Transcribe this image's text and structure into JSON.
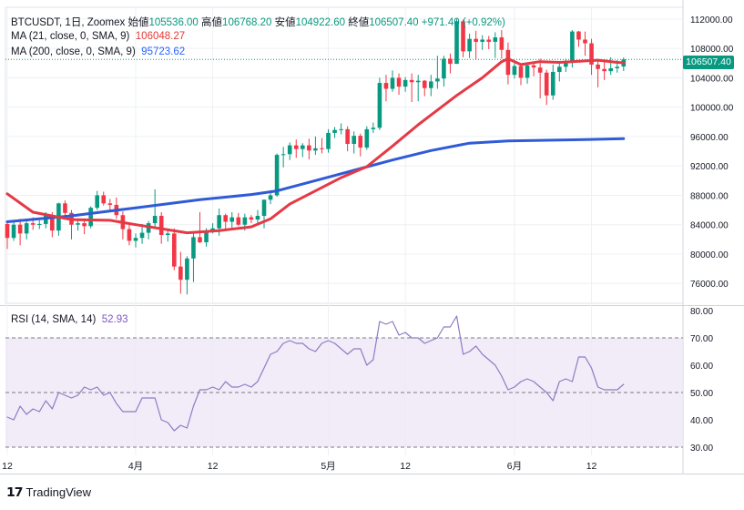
{
  "header": {
    "symbol": "BTCUSDT",
    "interval": "1日",
    "exchange": "Zoomex",
    "open_label": "始値",
    "open": "105536.00",
    "high_label": "高値",
    "high": "106768.20",
    "low_label": "安値",
    "low": "104922.60",
    "close_label": "終値",
    "close": "106507.40",
    "change": "+971.40 (+0.92%)"
  },
  "indicators": {
    "ma21_label": "MA (21, close, 0, SMA, 9)",
    "ma21_value": "106048.27",
    "ma21_color": "#e53945",
    "ma200_label": "MA (200, close, 0, SMA, 9)",
    "ma200_value": "95723.62",
    "ma200_color": "#2f5bd6",
    "rsi_label": "RSI (14, SMA, 14)",
    "rsi_value": "52.93",
    "rsi_color": "#8e7cc3"
  },
  "last_price_tag": "106507.40",
  "colors": {
    "up": "#089981",
    "down": "#f23645",
    "rsi_band": "#ede7f6"
  },
  "branding": "TradingView",
  "chart_data": {
    "type": "candlestick",
    "price_axis_ticks": [
      "112000.00",
      "108000.00",
      "104000.00",
      "100000.00",
      "96000.00",
      "92000.00",
      "88000.00",
      "84000.00",
      "80000.00",
      "76000.00"
    ],
    "price_range": [
      73300,
      113600
    ],
    "rsi_axis_ticks": [
      "80.00",
      "70.00",
      "60.00",
      "50.00",
      "40.00",
      "30.00"
    ],
    "rsi_range": [
      27,
      81
    ],
    "rsi_levels": [
      70,
      50,
      30
    ],
    "x_tick_labels": [
      "12",
      "4月",
      "12",
      "5月",
      "12",
      "6月",
      "12"
    ],
    "x_tick_index": [
      0,
      20,
      32,
      50,
      62,
      79,
      91
    ],
    "candles": [
      [
        84100,
        84500,
        80700,
        82200
      ],
      [
        82200,
        84500,
        81800,
        84000
      ],
      [
        84000,
        84800,
        81200,
        82800
      ],
      [
        82800,
        84800,
        82000,
        84200
      ],
      [
        84200,
        85000,
        83300,
        84000
      ],
      [
        84000,
        84600,
        83400,
        84100
      ],
      [
        84100,
        85700,
        83500,
        85300
      ],
      [
        85300,
        85700,
        82300,
        83200
      ],
      [
        83200,
        87000,
        82500,
        86900
      ],
      [
        86900,
        87300,
        85000,
        85600
      ],
      [
        85600,
        86000,
        82000,
        84000
      ],
      [
        84000,
        84600,
        83200,
        84200
      ],
      [
        84200,
        84600,
        82700,
        83800
      ],
      [
        83800,
        86500,
        83500,
        86300
      ],
      [
        86300,
        88600,
        86000,
        88000
      ],
      [
        88000,
        88500,
        86600,
        86900
      ],
      [
        86900,
        87500,
        85800,
        86700
      ],
      [
        86700,
        87700,
        84800,
        85300
      ],
      [
        85300,
        85800,
        82000,
        83400
      ],
      [
        83400,
        84000,
        81200,
        81800
      ],
      [
        81800,
        82800,
        80900,
        82200
      ],
      [
        82200,
        84100,
        81400,
        82900
      ],
      [
        82900,
        84500,
        82000,
        84200
      ],
      [
        84200,
        88800,
        83500,
        85200
      ],
      [
        85200,
        85700,
        81400,
        82600
      ],
      [
        82600,
        83200,
        81700,
        82800
      ],
      [
        82800,
        83500,
        77800,
        78300
      ],
      [
        78300,
        80300,
        74600,
        76500
      ],
      [
        76500,
        79700,
        74500,
        79400
      ],
      [
        79400,
        83000,
        76200,
        82300
      ],
      [
        82300,
        85700,
        81500,
        81600
      ],
      [
        81600,
        83500,
        81000,
        83200
      ],
      [
        83200,
        84200,
        82800,
        83500
      ],
      [
        83500,
        86200,
        82500,
        85300
      ],
      [
        85300,
        85500,
        83200,
        84400
      ],
      [
        84400,
        85700,
        83600,
        85000
      ],
      [
        85000,
        85600,
        83800,
        84000
      ],
      [
        84000,
        85500,
        83200,
        85000
      ],
      [
        85000,
        85300,
        84200,
        84700
      ],
      [
        84700,
        86000,
        84200,
        85200
      ],
      [
        85200,
        87400,
        83500,
        87400
      ],
      [
        87400,
        88700,
        86800,
        88000
      ],
      [
        88000,
        93700,
        87800,
        93500
      ],
      [
        93500,
        94600,
        91800,
        93600
      ],
      [
        93600,
        95200,
        92800,
        94800
      ],
      [
        94800,
        95600,
        93100,
        94300
      ],
      [
        94300,
        95100,
        93200,
        94800
      ],
      [
        94800,
        95700,
        92900,
        94100
      ],
      [
        94100,
        96000,
        93500,
        94400
      ],
      [
        94400,
        95800,
        93700,
        94300
      ],
      [
        94300,
        97000,
        93800,
        96500
      ],
      [
        96500,
        97300,
        95800,
        96900
      ],
      [
        96900,
        97800,
        96300,
        97000
      ],
      [
        97000,
        97400,
        94000,
        95000
      ],
      [
        95000,
        96700,
        93700,
        96100
      ],
      [
        96100,
        96400,
        93300,
        94500
      ],
      [
        94500,
        97400,
        94200,
        97000
      ],
      [
        97000,
        97900,
        96500,
        97200
      ],
      [
        97200,
        104000,
        96900,
        103300
      ],
      [
        103300,
        104400,
        100800,
        102500
      ],
      [
        102500,
        105000,
        102100,
        104000
      ],
      [
        104000,
        104600,
        101700,
        102800
      ],
      [
        102800,
        104100,
        102100,
        103700
      ],
      [
        103700,
        104600,
        100700,
        103400
      ],
      [
        103400,
        104400,
        100800,
        103600
      ],
      [
        103600,
        103700,
        101500,
        102600
      ],
      [
        102600,
        104400,
        101500,
        103500
      ],
      [
        103500,
        107000,
        102500,
        103900
      ],
      [
        103900,
        107000,
        102800,
        106600
      ],
      [
        106600,
        107300,
        104600,
        105900
      ],
      [
        105900,
        112000,
        105900,
        111700
      ],
      [
        111700,
        111900,
        106800,
        107600
      ],
      [
        107600,
        110000,
        106700,
        109300
      ],
      [
        109300,
        110400,
        106500,
        108900
      ],
      [
        108900,
        109800,
        107800,
        109200
      ],
      [
        109200,
        109700,
        107900,
        108900
      ],
      [
        108900,
        110200,
        106700,
        109500
      ],
      [
        109500,
        110500,
        106600,
        107800
      ],
      [
        107800,
        108800,
        103100,
        104400
      ],
      [
        104400,
        106100,
        103900,
        105600
      ],
      [
        105600,
        105800,
        103000,
        104000
      ],
      [
        104000,
        106000,
        103200,
        105700
      ],
      [
        105700,
        105900,
        104200,
        105400
      ],
      [
        105400,
        106600,
        101200,
        104700
      ],
      [
        104700,
        105100,
        100300,
        101600
      ],
      [
        101600,
        105800,
        101000,
        104800
      ],
      [
        104800,
        106000,
        103500,
        105500
      ],
      [
        105500,
        106600,
        104800,
        106100
      ],
      [
        106100,
        110500,
        105400,
        110300
      ],
      [
        110300,
        110400,
        108200,
        109200
      ],
      [
        109200,
        110300,
        107000,
        108700
      ],
      [
        108700,
        109300,
        104400,
        105800
      ],
      [
        105800,
        106400,
        102700,
        105200
      ],
      [
        105200,
        106500,
        103700,
        104900
      ],
      [
        104900,
        106800,
        104400,
        105300
      ],
      [
        105300,
        106400,
        104700,
        105500
      ],
      [
        105536,
        106768,
        104922,
        106507
      ]
    ],
    "ma21": [
      [
        0,
        88200
      ],
      [
        4,
        85700
      ],
      [
        10,
        84700
      ],
      [
        16,
        84600
      ],
      [
        20,
        84000
      ],
      [
        28,
        82900
      ],
      [
        33,
        83200
      ],
      [
        38,
        83700
      ],
      [
        41,
        84800
      ],
      [
        44,
        86800
      ],
      [
        48,
        88600
      ],
      [
        52,
        90400
      ],
      [
        56,
        91900
      ],
      [
        60,
        94700
      ],
      [
        64,
        97600
      ],
      [
        67,
        99600
      ],
      [
        70,
        101600
      ],
      [
        74,
        104000
      ],
      [
        77,
        106200
      ],
      [
        78,
        106600
      ],
      [
        80,
        105800
      ],
      [
        83,
        106200
      ],
      [
        86,
        106100
      ],
      [
        90,
        106300
      ],
      [
        92,
        106400
      ],
      [
        95,
        106100
      ],
      [
        96,
        106048
      ]
    ],
    "ma200": [
      [
        0,
        84400
      ],
      [
        10,
        85200
      ],
      [
        20,
        86300
      ],
      [
        30,
        87400
      ],
      [
        38,
        88100
      ],
      [
        42,
        88600
      ],
      [
        48,
        90000
      ],
      [
        54,
        91400
      ],
      [
        60,
        92800
      ],
      [
        66,
        94100
      ],
      [
        72,
        95100
      ],
      [
        78,
        95400
      ],
      [
        84,
        95500
      ],
      [
        90,
        95600
      ],
      [
        96,
        95724
      ]
    ],
    "rsi": [
      [
        0,
        41
      ],
      [
        1,
        40
      ],
      [
        2,
        45
      ],
      [
        3,
        42
      ],
      [
        4,
        44
      ],
      [
        5,
        43
      ],
      [
        6,
        47
      ],
      [
        7,
        44
      ],
      [
        8,
        50
      ],
      [
        9,
        49
      ],
      [
        10,
        48
      ],
      [
        11,
        49
      ],
      [
        12,
        52
      ],
      [
        13,
        51
      ],
      [
        14,
        52
      ],
      [
        15,
        49
      ],
      [
        16,
        50
      ],
      [
        17,
        46
      ],
      [
        18,
        43
      ],
      [
        19,
        43
      ],
      [
        20,
        43
      ],
      [
        21,
        48
      ],
      [
        22,
        48
      ],
      [
        23,
        48
      ],
      [
        24,
        40
      ],
      [
        25,
        39
      ],
      [
        26,
        36
      ],
      [
        27,
        38
      ],
      [
        28,
        37
      ],
      [
        29,
        45
      ],
      [
        30,
        51
      ],
      [
        31,
        51
      ],
      [
        32,
        52
      ],
      [
        33,
        51
      ],
      [
        34,
        54
      ],
      [
        35,
        52
      ],
      [
        36,
        52
      ],
      [
        37,
        53
      ],
      [
        38,
        52
      ],
      [
        39,
        54
      ],
      [
        40,
        59
      ],
      [
        41,
        64
      ],
      [
        42,
        65
      ],
      [
        43,
        68
      ],
      [
        44,
        69
      ],
      [
        45,
        68
      ],
      [
        46,
        68
      ],
      [
        47,
        66
      ],
      [
        48,
        65
      ],
      [
        49,
        68
      ],
      [
        50,
        69
      ],
      [
        51,
        68
      ],
      [
        52,
        66
      ],
      [
        53,
        64
      ],
      [
        54,
        66
      ],
      [
        55,
        66
      ],
      [
        56,
        60
      ],
      [
        57,
        62
      ],
      [
        58,
        76
      ],
      [
        59,
        75
      ],
      [
        60,
        76
      ],
      [
        61,
        71
      ],
      [
        62,
        72
      ],
      [
        63,
        70
      ],
      [
        64,
        70
      ],
      [
        65,
        68
      ],
      [
        66,
        69
      ],
      [
        67,
        70
      ],
      [
        68,
        74
      ],
      [
        69,
        74
      ],
      [
        70,
        78
      ],
      [
        71,
        64
      ],
      [
        72,
        65
      ],
      [
        73,
        67
      ],
      [
        74,
        64
      ],
      [
        75,
        62
      ],
      [
        76,
        60
      ],
      [
        77,
        56
      ],
      [
        78,
        51
      ],
      [
        79,
        52
      ],
      [
        80,
        54
      ],
      [
        81,
        55
      ],
      [
        82,
        54
      ],
      [
        83,
        52
      ],
      [
        84,
        50
      ],
      [
        85,
        47
      ],
      [
        86,
        54
      ],
      [
        87,
        55
      ],
      [
        88,
        54
      ],
      [
        89,
        63
      ],
      [
        90,
        63
      ],
      [
        91,
        59
      ],
      [
        92,
        52
      ],
      [
        93,
        51
      ],
      [
        94,
        51
      ],
      [
        95,
        51
      ],
      [
        96,
        53
      ]
    ]
  }
}
